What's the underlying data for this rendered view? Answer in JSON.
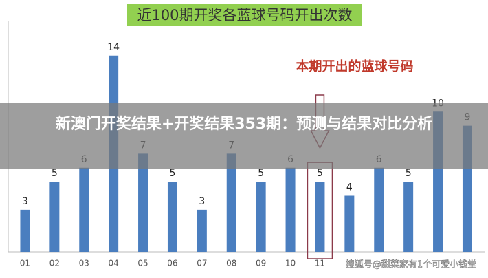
{
  "chart_data": {
    "type": "bar",
    "title": "近100期开奖各蓝球号码开出次数",
    "annotation": "本期开出的蓝球号码",
    "categories": [
      "01",
      "02",
      "03",
      "04",
      "05",
      "06",
      "07",
      "08",
      "09",
      "10",
      "11",
      null,
      null,
      null,
      null,
      null
    ],
    "values": [
      3,
      5,
      6,
      14,
      7,
      5,
      3,
      7,
      5,
      6,
      5,
      4,
      6,
      5,
      10,
      9
    ],
    "highlight_index": 10,
    "color": "#4a7ebf",
    "ylim": [
      0,
      16
    ]
  },
  "overlay": {
    "headline": "新澳门开奖结果+开奖结果353期：预测与结果对比分析",
    "watermark": "搜狐号@甜菜家有1个可爱小钱堂"
  }
}
